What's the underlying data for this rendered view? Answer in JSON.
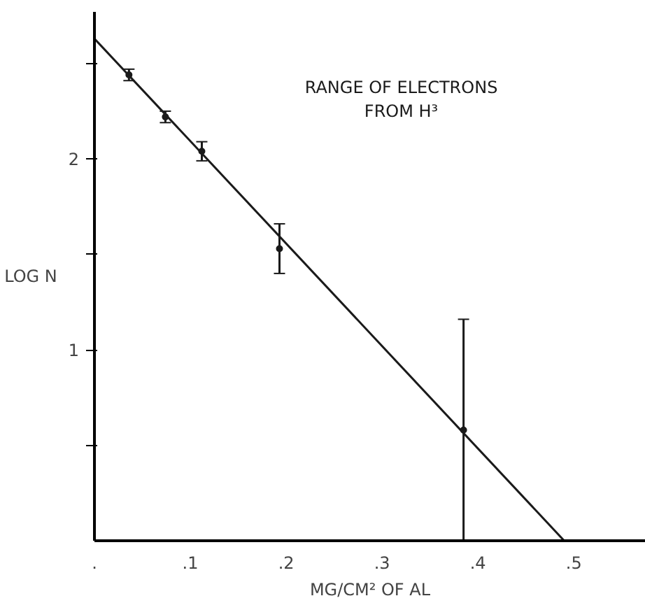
{
  "chart_data": {
    "type": "scatter",
    "title": "RANGE OF ELECTRONS\nFROM H³",
    "xlabel": "MG/CM² OF AL",
    "ylabel": "LOG N",
    "x": [
      0.036,
      0.074,
      0.112,
      0.193,
      0.385
    ],
    "series": [
      {
        "color": "#1a1a1a",
        "values": [
          2.44,
          2.22,
          2.04,
          1.53,
          0.58
        ],
        "errors": [
          0.03,
          0.03,
          0.05,
          0.13,
          0.58
        ],
        "marker": "circle"
      },
      {
        "type": "line",
        "color": "#1a1a1a",
        "x": [
          0,
          0.49
        ],
        "values": [
          2.63,
          0
        ]
      }
    ],
    "xlim": [
      0,
      0.575
    ],
    "ylim": [
      0,
      2.77
    ],
    "xticks": [
      {
        "value": 0,
        "label": "."
      },
      {
        "value": 0.1,
        "label": ".1"
      },
      {
        "value": 0.2,
        "label": ".2"
      },
      {
        "value": 0.3,
        "label": ".3"
      },
      {
        "value": 0.4,
        "label": ".4"
      },
      {
        "value": 0.5,
        "label": ".5"
      }
    ],
    "yticks": [
      {
        "value": 0.5,
        "label": null
      },
      1,
      {
        "value": 1.5,
        "label": null
      },
      2,
      {
        "value": 2.5,
        "label": null
      }
    ],
    "grid": false
  }
}
